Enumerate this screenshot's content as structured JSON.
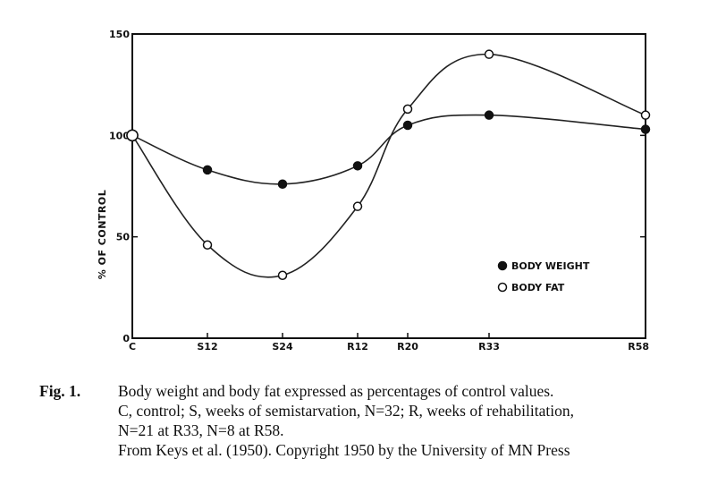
{
  "chart_data": {
    "type": "line",
    "title": "",
    "xlabel": "",
    "ylabel": "% OF CONTROL",
    "categories": [
      "C",
      "S12",
      "S24",
      "R12",
      "R20",
      "R33",
      "R58"
    ],
    "x": [
      0,
      12,
      24,
      36,
      44,
      57,
      82
    ],
    "ylim": [
      0,
      150
    ],
    "yticks": [
      0,
      50,
      100,
      150
    ],
    "grid": false,
    "legend_position": "lower-right",
    "series": [
      {
        "name": "BODY WEIGHT",
        "marker": "filled-circle",
        "values": [
          100,
          83,
          76,
          85,
          105,
          110,
          103
        ]
      },
      {
        "name": "BODY FAT",
        "marker": "open-circle",
        "values": [
          100,
          46,
          31,
          65,
          113,
          140,
          110
        ]
      }
    ]
  },
  "caption": {
    "label": "Fig. 1.",
    "lines": [
      "Body weight and  body fat expressed as percentages of control values.",
      "C, control; S, weeks of semistarvation, N=32; R, weeks of rehabilitation,",
      "N=21 at R33, N=8 at R58.",
      "From Keys et al. (1950). Copyright 1950 by the University of  MN Press"
    ]
  }
}
